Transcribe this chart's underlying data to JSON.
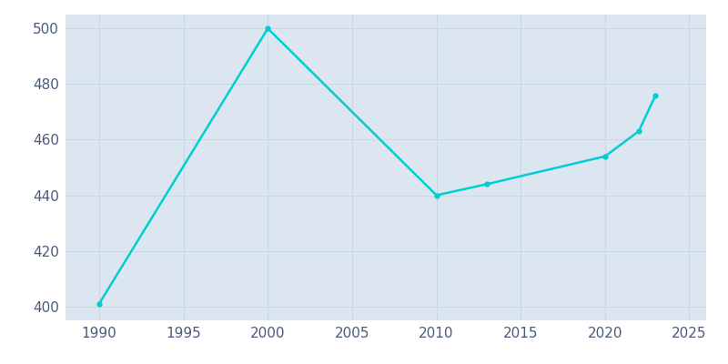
{
  "years": [
    1990,
    2000,
    2010,
    2013,
    2020,
    2022,
    2023
  ],
  "population": [
    401,
    500,
    440,
    444,
    454,
    463,
    476
  ],
  "line_color": "#00CED1",
  "line_width": 1.8,
  "background_color": "#ffffff",
  "plot_bg_color": "#dce6f0",
  "xlim": [
    1988,
    2026
  ],
  "ylim": [
    395,
    505
  ],
  "xticks": [
    1990,
    1995,
    2000,
    2005,
    2010,
    2015,
    2020,
    2025
  ],
  "yticks": [
    400,
    420,
    440,
    460,
    480,
    500
  ],
  "tick_color": "#4a5a7a",
  "grid_color": "#c8d8e8",
  "label_fontsize": 11
}
